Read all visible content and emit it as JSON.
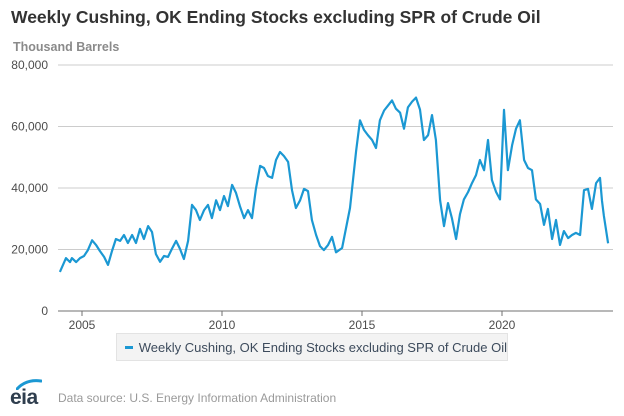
{
  "chart_data": {
    "type": "line",
    "title": "Weekly Cushing, OK Ending Stocks excluding SPR of Crude Oil",
    "ylabel": "Thousand Barrels",
    "xlabel": "",
    "ylim": [
      0,
      80000
    ],
    "xlim": [
      2003.4,
      2024.2
    ],
    "yticks": [
      0,
      20000,
      40000,
      60000,
      80000
    ],
    "ytick_labels": [
      "0",
      "20,000",
      "40,000",
      "60,000",
      "80,000"
    ],
    "xticks": [
      2005,
      2010,
      2015,
      2020
    ],
    "xtick_labels": [
      "2005",
      "2010",
      "2015",
      "2020"
    ],
    "grid": "horizontal",
    "legend_position": "bottom",
    "color": "#1b98d3",
    "series": [
      {
        "name": "Weekly Cushing, OK Ending Stocks excluding SPR of Crude Oil",
        "x": [
          2004.21,
          2004.43,
          2004.57,
          2004.64,
          2004.79,
          2004.93,
          2005.07,
          2005.21,
          2005.36,
          2005.5,
          2005.64,
          2005.79,
          2005.93,
          2006.07,
          2006.21,
          2006.36,
          2006.5,
          2006.64,
          2006.79,
          2006.93,
          2007.07,
          2007.21,
          2007.36,
          2007.5,
          2007.64,
          2007.79,
          2007.93,
          2008.07,
          2008.21,
          2008.36,
          2008.5,
          2008.64,
          2008.79,
          2008.93,
          2009.07,
          2009.21,
          2009.36,
          2009.5,
          2009.64,
          2009.79,
          2009.93,
          2010.07,
          2010.21,
          2010.36,
          2010.5,
          2010.64,
          2010.79,
          2010.93,
          2011.07,
          2011.21,
          2011.36,
          2011.5,
          2011.64,
          2011.79,
          2011.93,
          2012.07,
          2012.21,
          2012.36,
          2012.5,
          2012.64,
          2012.79,
          2012.93,
          2013.07,
          2013.21,
          2013.36,
          2013.5,
          2013.64,
          2013.79,
          2013.93,
          2014.07,
          2014.29,
          2014.57,
          2014.79,
          2014.93,
          2015.07,
          2015.21,
          2015.36,
          2015.5,
          2015.64,
          2015.79,
          2015.93,
          2016.07,
          2016.21,
          2016.36,
          2016.5,
          2016.64,
          2016.79,
          2016.93,
          2017.07,
          2017.21,
          2017.36,
          2017.5,
          2017.64,
          2017.79,
          2017.93,
          2018.07,
          2018.21,
          2018.36,
          2018.5,
          2018.64,
          2018.79,
          2018.93,
          2019.07,
          2019.21,
          2019.36,
          2019.5,
          2019.64,
          2019.79,
          2019.93,
          2020.07,
          2020.21,
          2020.36,
          2020.5,
          2020.64,
          2020.79,
          2020.93,
          2021.07,
          2021.21,
          2021.36,
          2021.5,
          2021.64,
          2021.79,
          2021.93,
          2022.07,
          2022.21,
          2022.36,
          2022.5,
          2022.64,
          2022.79,
          2022.93,
          2023.07,
          2023.21,
          2023.36,
          2023.5,
          2023.57,
          2023.64,
          2023.79
        ],
        "values": [
          12700,
          17200,
          15900,
          17200,
          15900,
          17200,
          17900,
          19800,
          23000,
          21500,
          19500,
          17600,
          15000,
          19500,
          23400,
          22800,
          24700,
          22100,
          24700,
          22100,
          26700,
          23400,
          27600,
          25700,
          18500,
          16000,
          17900,
          17600,
          20200,
          22800,
          20200,
          16900,
          22800,
          34500,
          32800,
          29600,
          32800,
          34500,
          30200,
          36000,
          32800,
          37400,
          34100,
          41000,
          38400,
          34100,
          30200,
          32800,
          30200,
          39700,
          47200,
          46500,
          43900,
          43300,
          49100,
          51700,
          50400,
          48500,
          39300,
          33500,
          36000,
          39700,
          39000,
          29600,
          24700,
          21100,
          19800,
          21500,
          24100,
          19100,
          20500,
          33500,
          52000,
          62000,
          58900,
          57200,
          55600,
          53000,
          62000,
          65200,
          66800,
          68500,
          65800,
          64500,
          59300,
          66200,
          68100,
          69400,
          65500,
          55600,
          57200,
          63700,
          55600,
          36000,
          27600,
          35100,
          30200,
          23400,
          31500,
          36300,
          38700,
          41600,
          44200,
          49100,
          45800,
          55600,
          42600,
          38700,
          36300,
          65400,
          45800,
          53900,
          59300,
          62000,
          49100,
          46500,
          45800,
          36300,
          34800,
          28000,
          33200,
          23400,
          29600,
          21500,
          26000,
          23700,
          24700,
          25400,
          24700,
          39300,
          39700,
          33200,
          41600,
          43300,
          35800,
          30900,
          22000
        ]
      }
    ]
  },
  "header": {
    "title": "Weekly Cushing, OK Ending Stocks excluding SPR of Crude Oil",
    "units": "Thousand Barrels"
  },
  "legend": {
    "items": [
      {
        "label": "Weekly Cushing, OK Ending Stocks excluding SPR of Crude Oil",
        "color": "#1b98d3"
      }
    ]
  },
  "footer": {
    "logo_text": "eia",
    "source": "Data source: U.S. Energy Information Administration"
  }
}
